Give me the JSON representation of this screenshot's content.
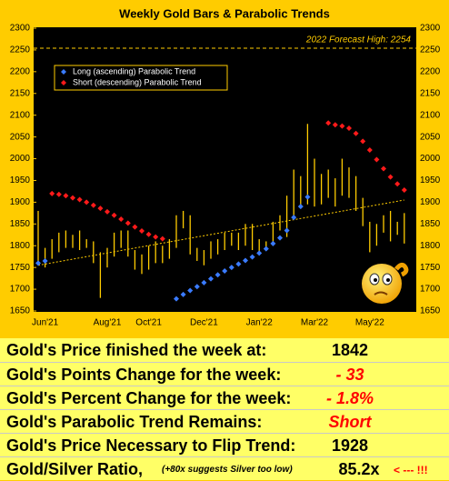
{
  "chart_data": {
    "type": "bar-trend",
    "title": "Weekly Gold Bars & Parabolic Trends",
    "categories": [
      null,
      "Jun'21",
      null,
      null,
      null,
      null,
      null,
      null,
      null,
      null,
      "Aug'21",
      null,
      null,
      null,
      null,
      null,
      "Oct'21",
      null,
      null,
      null,
      null,
      null,
      null,
      null,
      "Dec'21",
      null,
      null,
      null,
      null,
      null,
      null,
      null,
      "Jan'22",
      null,
      null,
      null,
      null,
      null,
      null,
      null,
      "Mar'22",
      null,
      null,
      null,
      null,
      null,
      null,
      null,
      "May'22",
      null,
      null,
      null,
      null,
      null
    ],
    "highs": [
      1880,
      1795,
      1815,
      1830,
      1835,
      1825,
      1835,
      1815,
      1810,
      1785,
      1795,
      1830,
      1835,
      1835,
      1790,
      1780,
      1800,
      1810,
      1800,
      1815,
      1870,
      1880,
      1870,
      1795,
      1790,
      1810,
      1815,
      1830,
      1830,
      1830,
      1850,
      1850,
      1815,
      1810,
      1855,
      1870,
      1915,
      1975,
      1960,
      2080,
      2000,
      1965,
      1975,
      1955,
      2000,
      1980,
      1960,
      1910,
      1855,
      1850,
      1870,
      1880,
      1855,
      1875
    ],
    "lows": [
      1755,
      1750,
      1770,
      1785,
      1795,
      1795,
      1790,
      1795,
      1760,
      1680,
      1750,
      1775,
      1795,
      1775,
      1745,
      1735,
      1745,
      1760,
      1760,
      1770,
      1795,
      1840,
      1780,
      1765,
      1755,
      1770,
      1780,
      1790,
      1800,
      1790,
      1800,
      1790,
      1780,
      1790,
      1800,
      1835,
      1820,
      1870,
      1890,
      1895,
      1890,
      1895,
      1910,
      1890,
      1915,
      1910,
      1880,
      1845,
      1785,
      1800,
      1830,
      1810,
      1825,
      1805
    ],
    "bar_color": "#ffcc00",
    "series": [
      {
        "name": "Long (ascending) Parabolic Trend",
        "color": "#3a7bff",
        "values": [
          1760,
          1765,
          null,
          null,
          null,
          null,
          null,
          null,
          null,
          null,
          null,
          null,
          null,
          null,
          null,
          null,
          null,
          null,
          null,
          null,
          1678,
          1688,
          1697,
          1706,
          1715,
          1724,
          1733,
          1742,
          1750,
          1758,
          1766,
          1774,
          1783,
          1793,
          1805,
          1818,
          1835,
          1865,
          1890,
          1912,
          null,
          null,
          null,
          null,
          null,
          null,
          null,
          null,
          null,
          null,
          null,
          null,
          null,
          null
        ]
      },
      {
        "name": "Short (descending) Parabolic Trend",
        "color": "#ff1a1a",
        "values": [
          null,
          null,
          1920,
          1918,
          1915,
          1910,
          1906,
          1900,
          1893,
          1886,
          1878,
          1870,
          1861,
          1852,
          1843,
          1834,
          1826,
          1820,
          1816,
          null,
          null,
          null,
          null,
          null,
          null,
          null,
          null,
          null,
          null,
          null,
          null,
          null,
          null,
          null,
          null,
          null,
          null,
          null,
          null,
          null,
          null,
          null,
          2082,
          2078,
          2075,
          2070,
          2058,
          2040,
          2020,
          1998,
          1977,
          1958,
          1942,
          1928
        ]
      }
    ],
    "trendline": [
      1755,
      1905
    ],
    "forecast": {
      "value": 2254,
      "label": "2022 Forecast High: 2254"
    },
    "ylim": [
      1650,
      2300
    ],
    "yticks": [
      1650,
      1700,
      1750,
      1800,
      1850,
      1900,
      1950,
      2000,
      2050,
      2100,
      2150,
      2200,
      2250,
      2300
    ]
  },
  "table": {
    "rows": [
      {
        "label": "Gold's Price finished the week at:",
        "value": "1842",
        "color": "#000"
      },
      {
        "label": "Gold's Points Change for the week:",
        "value": "- 33",
        "color": "#ff0000"
      },
      {
        "label": "Gold's Percent Change for the week:",
        "value": "- 1.8%",
        "color": "#ff0000"
      },
      {
        "label": "Gold's Parabolic Trend Remains:",
        "value": "Short",
        "color": "#ff0000"
      },
      {
        "label": "Gold's Price Necessary to Flip Trend:",
        "value": "1928",
        "color": "#000"
      },
      {
        "label": "Gold/Silver Ratio,",
        "note": "(+80x suggests Silver too low)",
        "value": "85.2x",
        "flag": "< --- !!!",
        "color": "#000"
      }
    ]
  }
}
